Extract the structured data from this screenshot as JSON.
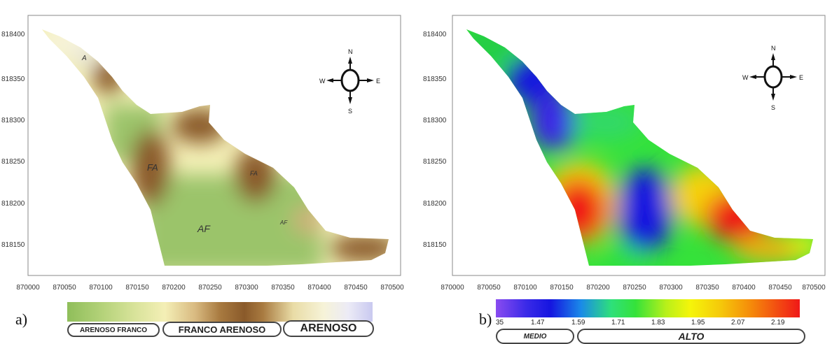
{
  "axes": {
    "x_ticks": [
      "870000",
      "870050",
      "870100",
      "870150",
      "870200",
      "870250",
      "870300",
      "870350",
      "870400",
      "870450",
      "870500"
    ],
    "y_ticks": [
      "818400",
      "818350",
      "818300",
      "818250",
      "818200",
      "818150"
    ]
  },
  "compass": {
    "n": "N",
    "s": "S",
    "e": "E",
    "w": "W"
  },
  "panel_a": {
    "letter": "a)",
    "zone_labels": {
      "a": "A",
      "fa1": "FA",
      "fa2": "FA",
      "af1": "AF",
      "af2": "AF"
    },
    "legend_classes": [
      "ARENOSO FRANCO",
      "FRANCO ARENOSO",
      "ARENOSO"
    ]
  },
  "panel_b": {
    "letter": "b)",
    "legend_ticks": [
      "35",
      "1.47",
      "1.59",
      "1.71",
      "1.83",
      "1.95",
      "2.07",
      "2.19"
    ],
    "legend_classes": [
      "MEDIO",
      "ALTO"
    ]
  },
  "colors": {
    "soil_green": "#9bc46a",
    "soil_cream": "#f4efb6",
    "soil_brown": "#8a5a2a",
    "soil_lavender": "#d6d6f2",
    "heat_blue": "#1515e0",
    "heat_green": "#35e23a",
    "heat_yellow": "#f5f50a",
    "heat_red": "#f01818"
  }
}
